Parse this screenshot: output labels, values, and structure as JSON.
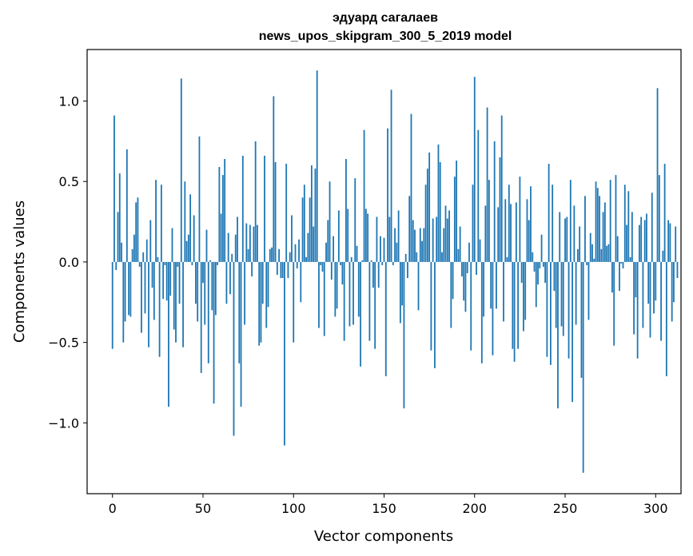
{
  "chart_data": {
    "type": "bar",
    "title": "эдуард сагалаев",
    "subtitle": "news_upos_skipgram_300_5_2019 model",
    "xlabel": "Vector components",
    "ylabel": "Components values",
    "xlim": [
      -14,
      314
    ],
    "ylim": [
      -1.44,
      1.32
    ],
    "xticks": [
      0,
      50,
      100,
      150,
      200,
      250,
      300
    ],
    "xtick_labels": [
      "0",
      "50",
      "100",
      "150",
      "200",
      "250",
      "300"
    ],
    "yticks": [
      -1.0,
      -0.5,
      0.0,
      0.5,
      1.0
    ],
    "ytick_labels": [
      "−1.0",
      "−0.5",
      "0.0",
      "0.5",
      "1.0"
    ],
    "bar_color": "#1f77b4",
    "grid": false,
    "series": [
      {
        "values": [
          -0.54,
          0.91,
          -0.05,
          0.31,
          0.55,
          0.12,
          -0.5,
          -0.37,
          0.7,
          -0.33,
          -0.34,
          0.08,
          0.17,
          0.37,
          0.4,
          -0.03,
          -0.44,
          0.06,
          -0.32,
          0.14,
          -0.53,
          0.26,
          -0.16,
          -0.36,
          0.51,
          0.03,
          -0.59,
          0.48,
          -0.23,
          -0.02,
          -0.24,
          -0.9,
          -0.21,
          0.21,
          -0.42,
          -0.5,
          -0.03,
          -0.26,
          1.14,
          -0.53,
          0.5,
          0.13,
          0.17,
          0.42,
          -0.02,
          0.29,
          -0.26,
          -0.37,
          0.78,
          -0.69,
          -0.13,
          -0.39,
          0.2,
          -0.63,
          0.01,
          -0.3,
          -0.88,
          -0.33,
          -0.02,
          0.59,
          0.3,
          0.54,
          0.64,
          -0.26,
          0.18,
          -0.2,
          0.05,
          -1.08,
          0.17,
          0.28,
          -0.63,
          -0.9,
          0.66,
          -0.39,
          0.24,
          0.08,
          0.23,
          -0.09,
          0.22,
          0.75,
          0.23,
          -0.52,
          -0.5,
          -0.26,
          0.66,
          -0.41,
          -0.28,
          0.08,
          0.09,
          1.03,
          0.62,
          -0.08,
          0.08,
          -0.1,
          -0.1,
          -1.14,
          0.61,
          -0.1,
          0.06,
          0.29,
          -0.5,
          0.11,
          -0.04,
          0.14,
          -0.25,
          0.4,
          0.48,
          0.03,
          0.18,
          0.4,
          0.6,
          0.22,
          0.58,
          1.19,
          -0.41,
          -0.02,
          -0.06,
          -0.46,
          0.12,
          0.26,
          0.5,
          -0.11,
          0.16,
          -0.34,
          -0.29,
          0.32,
          -0.02,
          -0.14,
          -0.49,
          0.64,
          0.33,
          -0.4,
          0.03,
          -0.39,
          0.52,
          0.1,
          -0.34,
          -0.65,
          0.01,
          0.82,
          0.33,
          0.3,
          -0.49,
          0.01,
          -0.16,
          -0.54,
          0.28,
          -0.16,
          0.16,
          -0.02,
          0.15,
          -0.71,
          0.83,
          0.28,
          1.07,
          -0.02,
          0.21,
          0.12,
          0.32,
          -0.38,
          -0.27,
          -0.91,
          0.05,
          -0.1,
          0.41,
          0.92,
          0.26,
          0.2,
          0.06,
          -0.3,
          0.21,
          0.13,
          0.21,
          0.48,
          0.58,
          0.68,
          -0.55,
          0.27,
          -0.66,
          0.28,
          0.73,
          0.62,
          0.06,
          0.21,
          0.35,
          0.27,
          0.32,
          -0.41,
          -0.23,
          0.53,
          0.63,
          0.08,
          0.22,
          -0.09,
          -0.24,
          -0.31,
          -0.07,
          0.12,
          -0.55,
          0.48,
          1.15,
          -0.08,
          0.82,
          0.14,
          -0.63,
          -0.34,
          0.35,
          0.96,
          0.51,
          -0.29,
          -0.58,
          0.75,
          -0.29,
          0.34,
          0.65,
          0.91,
          -0.37,
          0.39,
          0.03,
          0.48,
          0.36,
          -0.54,
          -0.62,
          0.37,
          -0.54,
          0.53,
          -0.13,
          -0.43,
          -0.36,
          0.39,
          0.26,
          0.47,
          0.06,
          -0.06,
          -0.28,
          -0.14,
          -0.04,
          0.17,
          -0.03,
          -0.13,
          -0.59,
          0.61,
          -0.64,
          0.48,
          -0.18,
          -0.41,
          -0.91,
          0.31,
          -0.4,
          -0.46,
          0.27,
          0.28,
          -0.6,
          0.51,
          -0.87,
          0.35,
          -0.39,
          0.08,
          0.22,
          -0.72,
          -1.31,
          0.41,
          -0.02,
          -0.36,
          0.18,
          0.11,
          0.02,
          0.5,
          0.46,
          0.41,
          0.08,
          0.31,
          0.37,
          0.1,
          0.11,
          0.51,
          -0.19,
          -0.52,
          0.54,
          0.16,
          -0.18,
          -0.01,
          -0.04,
          0.48,
          0.23,
          0.44,
          0.03,
          0.31,
          -0.45,
          -0.22,
          -0.6,
          0.23,
          0.28,
          -0.41,
          0.26,
          0.3,
          -0.26,
          -0.47,
          0.43,
          -0.32,
          -0.24,
          1.08,
          0.54,
          -0.49,
          0.07,
          0.61,
          -0.71,
          0.26,
          0.24,
          -0.37,
          -0.25,
          0.22,
          -0.1
        ]
      }
    ]
  }
}
